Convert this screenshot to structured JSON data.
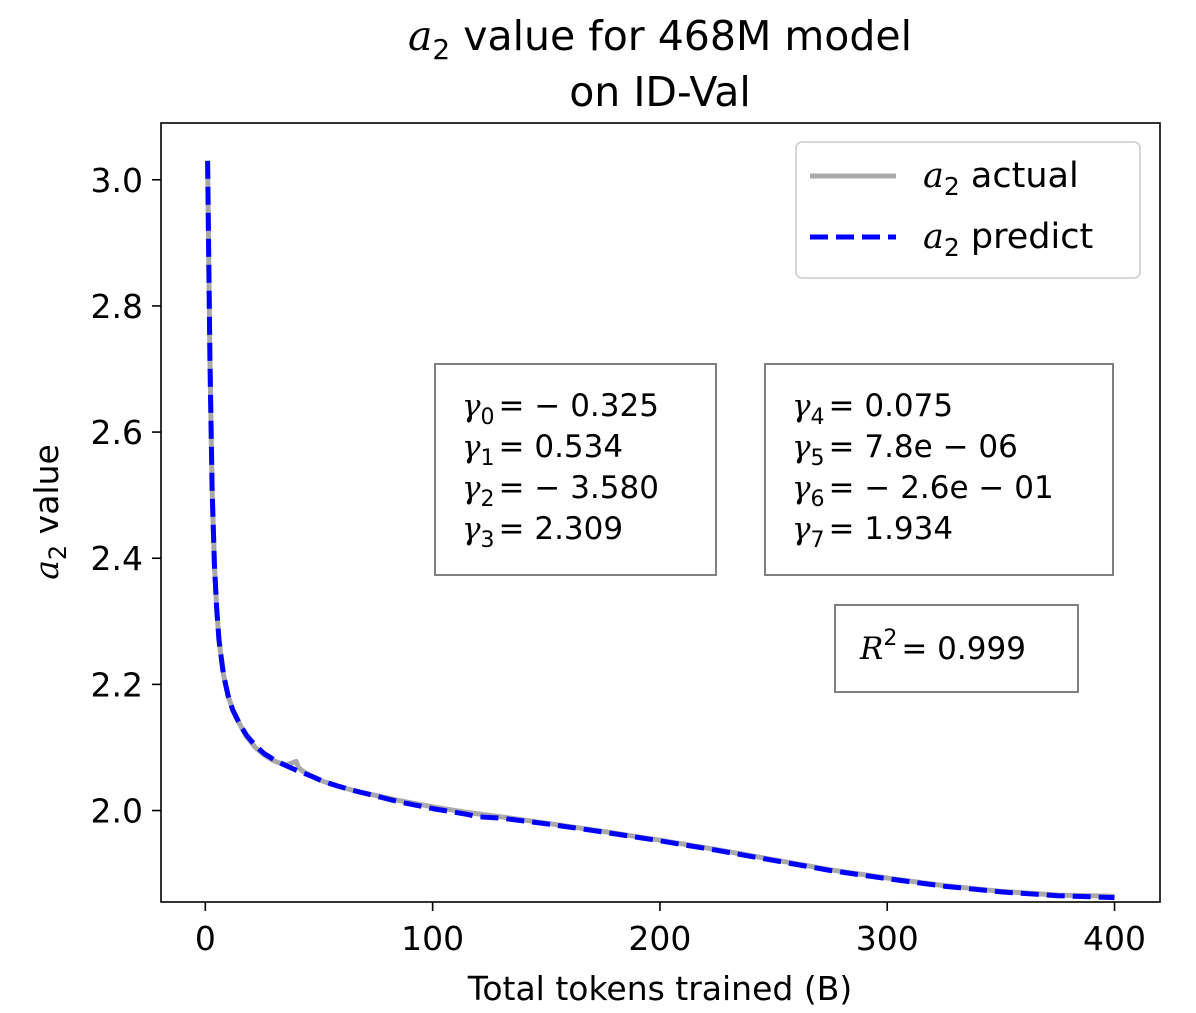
{
  "chart_data": {
    "type": "line",
    "title_line1_prefix": "a",
    "title_line1_sub": "2",
    "title_line1_rest": " value for 468M model",
    "title_line2": "on ID-Val",
    "xlabel": "Total tokens trained (B)",
    "ylabel_var": "a",
    "ylabel_sub": "2",
    "ylabel_rest": " value",
    "xlim": [
      -19.5,
      420
    ],
    "ylim": [
      1.855,
      3.09
    ],
    "xticks": [
      0,
      100,
      200,
      300,
      400
    ],
    "xtick_labels": [
      "0",
      "100",
      "200",
      "300",
      "400"
    ],
    "yticks": [
      2.0,
      2.2,
      2.4,
      2.6,
      2.8,
      3.0
    ],
    "ytick_labels": [
      "2.0",
      "2.2",
      "2.4",
      "2.6",
      "2.8",
      "3.0"
    ],
    "legend_position": "upper right",
    "series": [
      {
        "name": "a2 actual",
        "legend_var": "a",
        "legend_sub": "2",
        "legend_rest": " actual",
        "color": "#a9a9a9",
        "style": "solid",
        "x": [
          1,
          2,
          3,
          4,
          5,
          6,
          8,
          10,
          12,
          15,
          18,
          22,
          26,
          30,
          35,
          38,
          40,
          41,
          43,
          47,
          52,
          58,
          65,
          75,
          85,
          100,
          115,
          130,
          150,
          175,
          200,
          225,
          250,
          275,
          300,
          325,
          350,
          375,
          400
        ],
        "y": [
          3.03,
          2.72,
          2.51,
          2.39,
          2.32,
          2.27,
          2.215,
          2.182,
          2.16,
          2.138,
          2.118,
          2.1,
          2.088,
          2.079,
          2.072,
          2.075,
          2.078,
          2.068,
          2.062,
          2.054,
          2.046,
          2.039,
          2.032,
          2.024,
          2.016,
          2.006,
          1.997,
          1.99,
          1.98,
          1.967,
          1.953,
          1.938,
          1.922,
          1.906,
          1.893,
          1.881,
          1.872,
          1.866,
          1.864
        ]
      },
      {
        "name": "a2 predict",
        "legend_var": "a",
        "legend_sub": "2",
        "legend_rest": " predict",
        "color": "#0000ff",
        "style": "dashed",
        "x": [
          1,
          2,
          3,
          4,
          5,
          6,
          8,
          10,
          12,
          15,
          18,
          22,
          26,
          30,
          35,
          40,
          47,
          52,
          58,
          65,
          75,
          85,
          100,
          115,
          120,
          130,
          150,
          175,
          200,
          225,
          250,
          275,
          300,
          325,
          350,
          375,
          400
        ],
        "y": [
          3.03,
          2.72,
          2.51,
          2.39,
          2.32,
          2.27,
          2.215,
          2.182,
          2.16,
          2.138,
          2.12,
          2.103,
          2.09,
          2.081,
          2.072,
          2.064,
          2.054,
          2.046,
          2.039,
          2.032,
          2.023,
          2.014,
          2.003,
          1.994,
          1.99,
          1.988,
          1.979,
          1.966,
          1.952,
          1.937,
          1.921,
          1.905,
          1.892,
          1.88,
          1.871,
          1.865,
          1.862
        ]
      }
    ],
    "annotation_boxes": [
      {
        "id": "gammas-left",
        "lines": [
          {
            "sub": "0",
            "value": "= − 0.325"
          },
          {
            "sub": "1",
            "value": "= 0.534"
          },
          {
            "sub": "2",
            "value": "= − 3.580"
          },
          {
            "sub": "3",
            "value": "= 2.309"
          }
        ]
      },
      {
        "id": "gammas-right",
        "lines": [
          {
            "sub": "4",
            "value": "= 0.075"
          },
          {
            "sub": "5",
            "value": "= 7.8e − 06"
          },
          {
            "sub": "6",
            "value": "= − 2.6e − 01"
          },
          {
            "sub": "7",
            "value": "= 1.934"
          }
        ]
      }
    ],
    "r2": {
      "var": "R",
      "sup": "2",
      "value": "= 0.999"
    },
    "gamma_symbol": "γ",
    "grid": false
  }
}
